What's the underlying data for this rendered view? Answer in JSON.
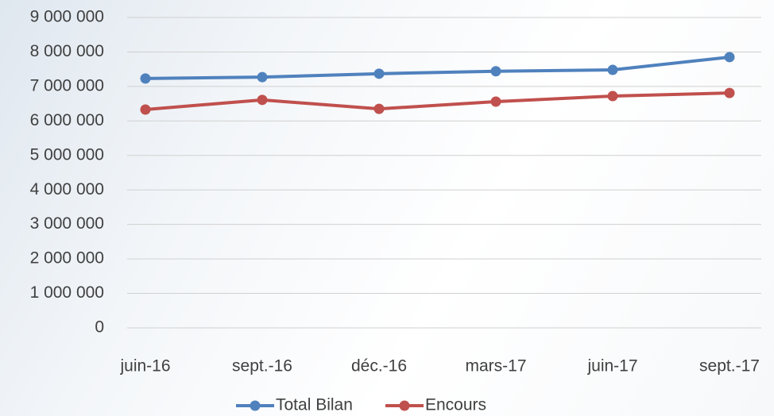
{
  "chart_data": {
    "type": "line",
    "categories": [
      "juin-16",
      "sept.-16",
      "déc.-16",
      "mars-17",
      "juin-17",
      "sept.-17"
    ],
    "series": [
      {
        "name": "Total Bilan",
        "color": "#4f81bd",
        "values": [
          7230000,
          7270000,
          7370000,
          7440000,
          7480000,
          7850000
        ]
      },
      {
        "name": "Encours",
        "color": "#c0504d",
        "values": [
          6330000,
          6610000,
          6350000,
          6560000,
          6720000,
          6810000
        ]
      }
    ],
    "ylim": [
      0,
      9000000
    ],
    "yticks": [
      {
        "value": 0,
        "label": "0"
      },
      {
        "value": 1000000,
        "label": "1 000 000"
      },
      {
        "value": 2000000,
        "label": "2 000 000"
      },
      {
        "value": 3000000,
        "label": "3 000 000"
      },
      {
        "value": 4000000,
        "label": "4 000 000"
      },
      {
        "value": 5000000,
        "label": "5 000 000"
      },
      {
        "value": 6000000,
        "label": "6 000 000"
      },
      {
        "value": 7000000,
        "label": "7 000 000"
      },
      {
        "value": 8000000,
        "label": "8 000 000"
      },
      {
        "value": 9000000,
        "label": "9 000 000"
      }
    ],
    "grid": true,
    "legend": "bottom"
  }
}
